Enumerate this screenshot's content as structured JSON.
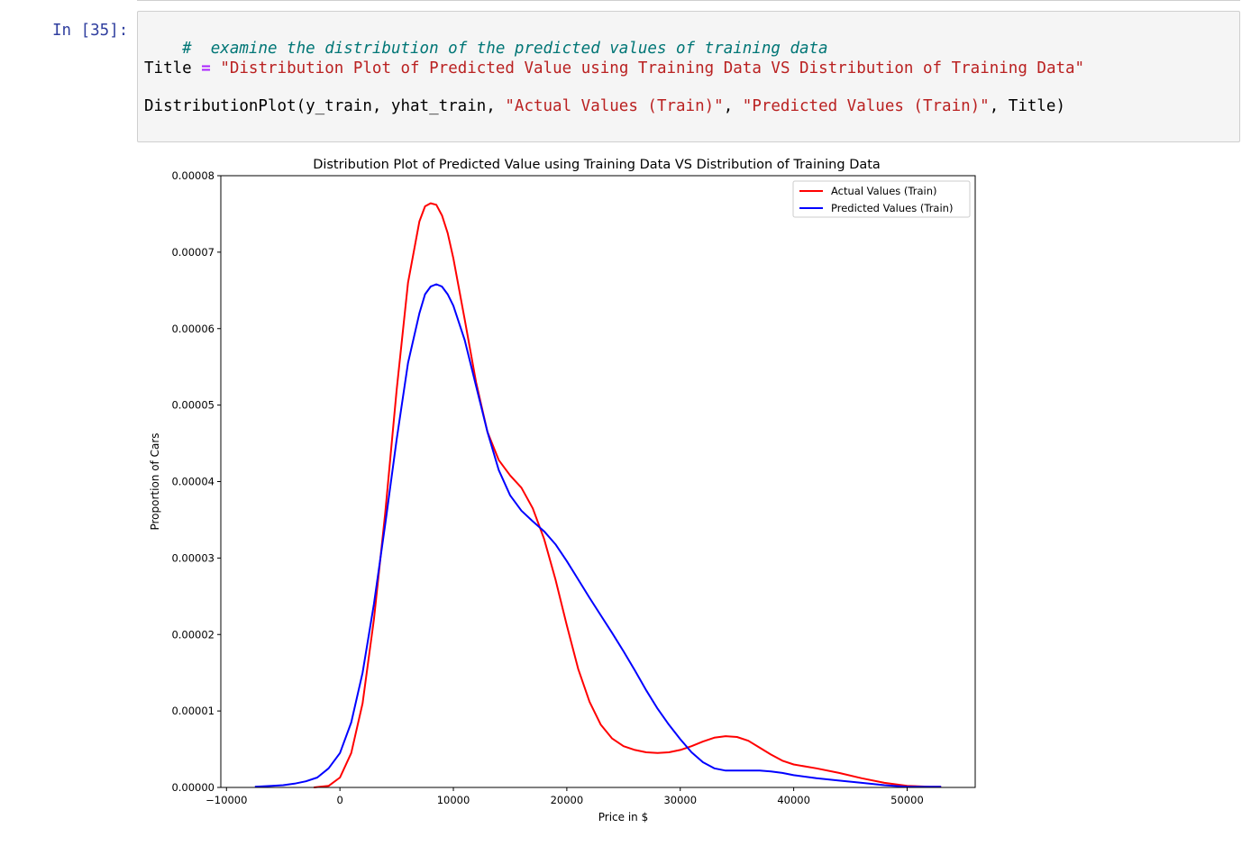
{
  "cell": {
    "prompt": "In [35]:",
    "line1_comment": "#  examine the distribution of the predicted values of training data",
    "line2": {
      "var": "Title",
      "op": "=",
      "str": "\"Distribution Plot of Predicted Value using Training Data VS Distribution of Training Data\""
    },
    "line3": {
      "func": "DistributionPlot(y_train, yhat_train, ",
      "arg1": "\"Actual Values (Train)\"",
      "sep": ", ",
      "arg2": "\"Predicted Values (Train)\"",
      "tail": ", Title)"
    }
  },
  "chart_data": {
    "type": "line",
    "title": "Distribution Plot of Predicted Value using Training Data VS Distribution of Training Data",
    "xlabel": "Price in $",
    "ylabel": "Proportion of Cars",
    "xlim": [
      -10500,
      56000
    ],
    "ylim": [
      0,
      8e-05
    ],
    "xticks": [
      -10000,
      0,
      10000,
      20000,
      30000,
      40000,
      50000
    ],
    "xtick_labels": [
      "−10000",
      "0",
      "10000",
      "20000",
      "30000",
      "40000",
      "50000"
    ],
    "yticks": [
      0,
      1e-05,
      2e-05,
      3e-05,
      4e-05,
      5e-05,
      6e-05,
      7e-05,
      8e-05
    ],
    "ytick_labels": [
      "0.00000",
      "0.00001",
      "0.00002",
      "0.00003",
      "0.00004",
      "0.00005",
      "0.00006",
      "0.00007",
      "0.00008"
    ],
    "grid": false,
    "legend_position": "top-right",
    "series": [
      {
        "name": "Actual Values (Train)",
        "color": "#ff0000",
        "x": [
          -2300,
          -1000,
          0,
          1000,
          2000,
          3000,
          4000,
          5000,
          6000,
          7000,
          7500,
          8000,
          8500,
          9000,
          9500,
          10000,
          11000,
          12000,
          13000,
          14000,
          15000,
          16000,
          17000,
          18000,
          19000,
          20000,
          21000,
          22000,
          23000,
          24000,
          25000,
          26000,
          27000,
          28000,
          29000,
          30000,
          31000,
          32000,
          33000,
          34000,
          35000,
          36000,
          37000,
          38000,
          39000,
          40000,
          42000,
          44000,
          46000,
          48000,
          50000,
          52000,
          53000
        ],
        "y": [
          0.0,
          2e-07,
          1.3e-06,
          4.5e-06,
          1.1e-05,
          2.2e-05,
          3.6e-05,
          5.2e-05,
          6.6e-05,
          7.4e-05,
          7.6e-05,
          7.64e-05,
          7.62e-05,
          7.48e-05,
          7.25e-05,
          6.92e-05,
          6.12e-05,
          5.3e-05,
          4.65e-05,
          4.28e-05,
          4.08e-05,
          3.92e-05,
          3.65e-05,
          3.25e-05,
          2.72e-05,
          2.12e-05,
          1.55e-05,
          1.12e-05,
          8.2e-06,
          6.4e-06,
          5.4e-06,
          4.9e-06,
          4.6e-06,
          4.5e-06,
          4.6e-06,
          4.9e-06,
          5.4e-06,
          6e-06,
          6.5e-06,
          6.7e-06,
          6.6e-06,
          6.1e-06,
          5.2e-06,
          4.3e-06,
          3.5e-06,
          3e-06,
          2.5e-06,
          1.9e-06,
          1.2e-06,
          6e-07,
          2e-07,
          1e-07,
          1e-07
        ]
      },
      {
        "name": "Predicted Values (Train)",
        "color": "#0000ff",
        "x": [
          -7500,
          -6000,
          -5000,
          -4000,
          -3000,
          -2000,
          -1000,
          0,
          1000,
          2000,
          3000,
          4000,
          5000,
          6000,
          7000,
          7500,
          8000,
          8500,
          9000,
          9500,
          10000,
          11000,
          12000,
          13000,
          14000,
          15000,
          16000,
          17000,
          18000,
          19000,
          20000,
          21000,
          22000,
          23000,
          24000,
          25000,
          26000,
          27000,
          28000,
          29000,
          30000,
          31000,
          32000,
          33000,
          34000,
          35000,
          36000,
          37000,
          38000,
          39000,
          40000,
          42000,
          44000,
          46000,
          48000,
          50000,
          52000,
          53000
        ],
        "y": [
          1e-07,
          2e-07,
          3e-07,
          5e-07,
          8e-07,
          1.3e-06,
          2.5e-06,
          4.5e-06,
          8.5e-06,
          1.5e-05,
          2.4e-05,
          3.45e-05,
          4.55e-05,
          5.55e-05,
          6.2e-05,
          6.45e-05,
          6.55e-05,
          6.58e-05,
          6.55e-05,
          6.45e-05,
          6.3e-05,
          5.85e-05,
          5.25e-05,
          4.65e-05,
          4.15e-05,
          3.82e-05,
          3.62e-05,
          3.48e-05,
          3.35e-05,
          3.18e-05,
          2.96e-05,
          2.72e-05,
          2.48e-05,
          2.25e-05,
          2.02e-05,
          1.78e-05,
          1.53e-05,
          1.27e-05,
          1.03e-05,
          8.2e-06,
          6.3e-06,
          4.6e-06,
          3.3e-06,
          2.5e-06,
          2.2e-06,
          2.2e-06,
          2.2e-06,
          2.2e-06,
          2.1e-06,
          1.9e-06,
          1.6e-06,
          1.2e-06,
          9e-07,
          6e-07,
          3e-07,
          1e-07,
          1e-07,
          1e-07
        ]
      }
    ]
  }
}
